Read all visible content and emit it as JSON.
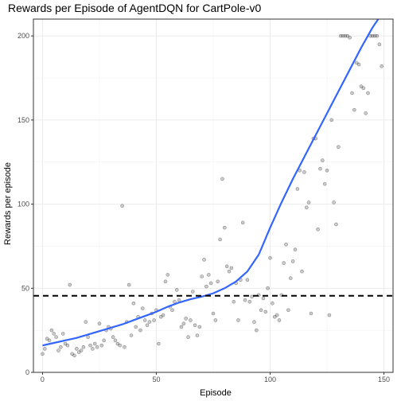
{
  "chart_data": {
    "type": "scatter",
    "title": "Rewards per Episode of AgentDQN for CartPole-v0",
    "xlabel": "Episode",
    "ylabel": "Rewards per episode",
    "xlim": [
      -4,
      154
    ],
    "ylim": [
      0,
      210
    ],
    "x_ticks": [
      0,
      50,
      100,
      150
    ],
    "y_ticks": [
      0,
      50,
      100,
      150,
      200
    ],
    "grid": true,
    "legend": "none",
    "hline": {
      "y": 45.5,
      "style": "dashed",
      "color": "#000000"
    },
    "points": {
      "color": "#000000",
      "x": [
        0,
        1,
        2,
        3,
        4,
        5,
        6,
        7,
        8,
        9,
        10,
        11,
        12,
        13,
        14,
        15,
        16,
        17,
        18,
        19,
        20,
        21,
        22,
        23,
        24,
        25,
        26,
        27,
        28,
        29,
        30,
        31,
        32,
        33,
        34,
        35,
        36,
        37,
        38,
        39,
        40,
        41,
        42,
        43,
        44,
        45,
        46,
        47,
        48,
        49,
        50,
        51,
        52,
        53,
        54,
        55,
        56,
        57,
        58,
        59,
        60,
        61,
        62,
        63,
        64,
        65,
        66,
        67,
        68,
        69,
        70,
        71,
        72,
        73,
        74,
        75,
        76,
        77,
        78,
        79,
        80,
        81,
        82,
        83,
        84,
        85,
        86,
        87,
        88,
        89,
        90,
        91,
        92,
        93,
        94,
        95,
        96,
        97,
        98,
        99,
        100,
        101,
        102,
        103,
        104,
        105,
        106,
        107,
        108,
        109,
        110,
        111,
        112,
        113,
        114,
        115,
        116,
        117,
        118,
        119,
        120,
        121,
        122,
        123,
        124,
        125,
        126,
        127,
        128,
        129,
        130,
        131,
        132,
        133,
        134,
        135,
        136,
        137,
        138,
        139,
        140,
        141,
        142,
        143,
        144,
        145,
        146,
        147,
        148,
        149
      ],
      "y": [
        11,
        14,
        20,
        19,
        25,
        23,
        21,
        13,
        15,
        23,
        17,
        16,
        52,
        11,
        10,
        14,
        12,
        13,
        15,
        30,
        21,
        16,
        14,
        17,
        15,
        29,
        16,
        19,
        25,
        27,
        26,
        21,
        19,
        17,
        16,
        99,
        15,
        30,
        52,
        22,
        41,
        27,
        33,
        25,
        38,
        31,
        28,
        30,
        35,
        31,
        37,
        17,
        33,
        34,
        54,
        58,
        39,
        37,
        42,
        49,
        43,
        27,
        29,
        32,
        21,
        31,
        48,
        28,
        22,
        27,
        57,
        67,
        51,
        58,
        53,
        35,
        31,
        54,
        79,
        115,
        86,
        63,
        60,
        62,
        42,
        53,
        31,
        55,
        89,
        43,
        55,
        42,
        45,
        30,
        25,
        46,
        37,
        44,
        36,
        50,
        68,
        41,
        33,
        34,
        31,
        46,
        65,
        76,
        37,
        56,
        66,
        73,
        109,
        120,
        60,
        119,
        98,
        101,
        35,
        139,
        139,
        85,
        121,
        126,
        112,
        120,
        34,
        150,
        101,
        88,
        134,
        200,
        200,
        200,
        200,
        199,
        166,
        156,
        184,
        183,
        170,
        169,
        154,
        166,
        200,
        200,
        200,
        200,
        195,
        182
      ],
      "_note": "approximate scatter reading"
    },
    "smooth": {
      "color": "#3366ff",
      "x": [
        0,
        5,
        10,
        15,
        20,
        25,
        30,
        35,
        40,
        45,
        50,
        55,
        60,
        65,
        70,
        75,
        80,
        85,
        90,
        95,
        100,
        105,
        110,
        115,
        120,
        125,
        130,
        135,
        140,
        145,
        148
      ],
      "y": [
        16,
        17.5,
        19,
        20.5,
        22.5,
        24.5,
        26.5,
        28.5,
        31,
        33.5,
        36,
        39,
        41.5,
        43.5,
        45,
        47,
        50,
        54,
        60,
        70,
        86,
        101,
        115,
        128,
        141,
        154,
        167,
        180,
        193,
        205,
        211
      ]
    }
  }
}
